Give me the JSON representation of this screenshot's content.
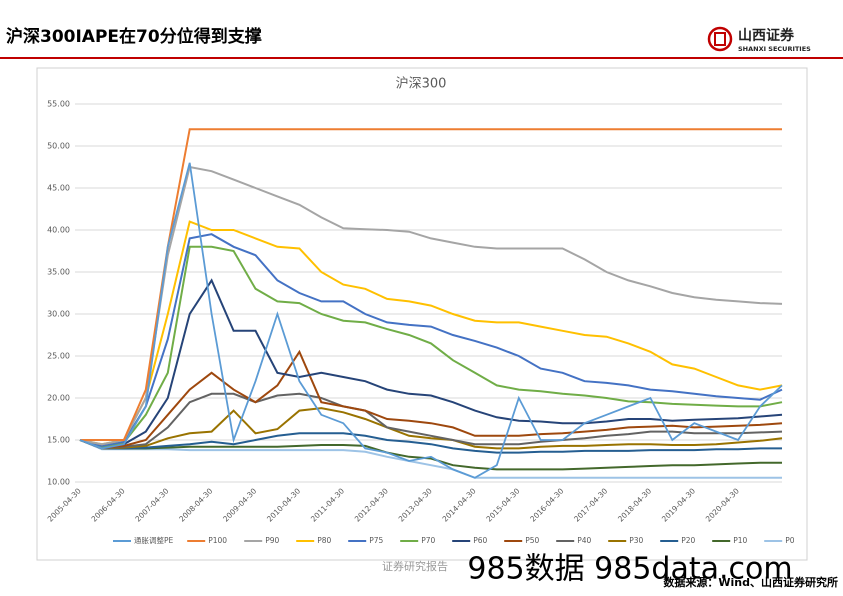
{
  "header": {
    "title": "沪深300IAPE在70分位得到支撑",
    "logo": "山西证券",
    "logo_en": "SHANXI SECURITIES"
  },
  "footer": {
    "center": "证券研究报告",
    "source": "数据来源：Wind、山西证券研究所",
    "watermark": "985数据 985data.com"
  },
  "chart_data": {
    "type": "line",
    "title": "沪深300",
    "categories": [
      "2005-04-30",
      null,
      "2006-04-30",
      null,
      "2007-04-30",
      null,
      "2008-04-30",
      null,
      "2009-04-30",
      null,
      "2010-04-30",
      null,
      "2011-04-30",
      null,
      "2012-04-30",
      null,
      "2013-04-30",
      null,
      "2014-04-30",
      null,
      "2015-04-30",
      null,
      "2016-04-30",
      null,
      "2017-04-30",
      null,
      "2018-04-30",
      null,
      "2019-04-30",
      null,
      "2020-04-30",
      null,
      null
    ],
    "ylim": [
      10,
      55
    ],
    "yticks": [
      {
        "value": 10,
        "label": "10.00"
      },
      {
        "value": 15,
        "label": "15.00"
      },
      {
        "value": 20,
        "label": "20.00"
      },
      {
        "value": 25,
        "label": "25.00"
      },
      {
        "value": 30,
        "label": "30.00"
      },
      {
        "value": 35,
        "label": "35.00"
      },
      {
        "value": 40,
        "label": "40.00"
      },
      {
        "value": 45,
        "label": "45.00"
      },
      {
        "value": 50,
        "label": "50.00"
      },
      {
        "value": 55,
        "label": "55.00"
      }
    ],
    "grid": true,
    "legend": "bottom",
    "series": [
      {
        "name": "通胀调整PE",
        "color": "#5b9bd5",
        "values": [
          15,
          14,
          14.5,
          19,
          38,
          48,
          30,
          15,
          22,
          30,
          22,
          18,
          17,
          14,
          13.5,
          12.5,
          13,
          11.5,
          10.5,
          12,
          20,
          15,
          15,
          17,
          18,
          19,
          20,
          15,
          17,
          16,
          15,
          19,
          21.5
        ]
      },
      {
        "name": "P100",
        "color": "#ed7d31",
        "values": [
          15,
          15,
          15,
          21,
          38,
          52,
          52,
          52,
          52,
          52,
          52,
          52,
          52,
          52,
          52,
          52,
          52,
          52,
          52,
          52,
          52,
          52,
          52,
          52,
          52,
          52,
          52,
          52,
          52,
          52,
          52,
          52,
          52
        ]
      },
      {
        "name": "P90",
        "color": "#a5a5a5",
        "values": [
          15,
          14.5,
          15,
          20,
          37,
          47.5,
          47,
          46,
          45,
          44,
          43,
          41.5,
          40.2,
          40.1,
          40,
          39.8,
          39,
          38.5,
          38,
          37.8,
          37.8,
          37.8,
          37.8,
          36.5,
          35,
          34,
          33.3,
          32.5,
          32,
          31.7,
          31.5,
          31.3,
          31.2
        ]
      },
      {
        "name": "P80",
        "color": "#ffc000",
        "values": [
          15,
          14.5,
          15,
          20,
          30,
          41,
          40,
          40,
          39,
          38,
          37.8,
          35,
          33.5,
          33,
          31.8,
          31.5,
          31,
          30,
          29.2,
          29,
          29,
          28.5,
          28,
          27.5,
          27.3,
          26.5,
          25.5,
          24,
          23.5,
          22.5,
          21.5,
          21,
          21.5
        ]
      },
      {
        "name": "P75",
        "color": "#4472c4",
        "values": [
          15,
          14.3,
          14.8,
          19,
          27,
          39,
          39.5,
          38,
          37,
          34,
          32.5,
          31.5,
          31.5,
          30,
          29,
          28.7,
          28.5,
          27.5,
          26.8,
          26,
          25,
          23.5,
          23,
          22,
          21.8,
          21.5,
          21,
          20.8,
          20.5,
          20.2,
          20,
          19.8,
          21
        ]
      },
      {
        "name": "P70",
        "color": "#70ad47",
        "values": [
          15,
          14.2,
          14.7,
          18,
          23,
          38,
          38,
          37.5,
          33,
          31.5,
          31.3,
          30,
          29.2,
          29,
          28.2,
          27.5,
          26.5,
          24.5,
          23,
          21.5,
          21,
          20.8,
          20.5,
          20.3,
          20,
          19.6,
          19.5,
          19.3,
          19.2,
          19.1,
          19,
          19,
          19.5
        ]
      },
      {
        "name": "P60",
        "color": "#264478",
        "values": [
          15,
          14.2,
          14.5,
          16,
          20,
          30,
          34,
          28,
          28,
          23,
          22.5,
          23,
          22.5,
          22,
          21,
          20.5,
          20.3,
          19.5,
          18.5,
          17.7,
          17.3,
          17.2,
          17,
          17,
          17.2,
          17.5,
          17.5,
          17.3,
          17.4,
          17.5,
          17.6,
          17.8,
          18
        ]
      },
      {
        "name": "P50",
        "color": "#9e480e",
        "values": [
          15,
          14.1,
          14.3,
          15,
          18,
          21,
          23,
          21,
          19.5,
          21.5,
          25.5,
          19.5,
          19,
          18.5,
          17.5,
          17.3,
          17,
          16.5,
          15.5,
          15.5,
          15.5,
          15.7,
          15.8,
          16,
          16.2,
          16.5,
          16.6,
          16.7,
          16.5,
          16.6,
          16.7,
          16.8,
          17
        ]
      },
      {
        "name": "P40",
        "color": "#636363",
        "values": [
          15,
          14,
          14.2,
          14.5,
          16.5,
          19.5,
          20.5,
          20.5,
          19.5,
          20.3,
          20.5,
          20,
          19,
          18.5,
          16.5,
          16,
          15.5,
          15,
          14.5,
          14.5,
          14.5,
          14.8,
          15,
          15.2,
          15.5,
          15.7,
          16,
          16,
          15.8,
          15.8,
          15.8,
          15.9,
          16
        ]
      },
      {
        "name": "P30",
        "color": "#997300",
        "values": [
          15,
          14,
          14.1,
          14.3,
          15.2,
          15.8,
          16,
          18.5,
          15.8,
          16.3,
          18.5,
          18.8,
          18.3,
          17.5,
          16.5,
          15.5,
          15.2,
          15,
          14.2,
          14,
          14,
          14.2,
          14.3,
          14.3,
          14.4,
          14.5,
          14.5,
          14.4,
          14.4,
          14.5,
          14.7,
          14.9,
          15.2
        ]
      },
      {
        "name": "P20",
        "color": "#255e91",
        "values": [
          15,
          14,
          14,
          14.1,
          14.3,
          14.5,
          14.8,
          14.5,
          15,
          15.5,
          15.8,
          15.8,
          15.8,
          15.5,
          15,
          14.8,
          14.5,
          14,
          13.7,
          13.5,
          13.5,
          13.6,
          13.6,
          13.7,
          13.7,
          13.7,
          13.8,
          13.8,
          13.8,
          13.9,
          13.9,
          14,
          14
        ]
      },
      {
        "name": "P10",
        "color": "#43682b",
        "values": [
          15,
          14,
          14,
          14,
          14.1,
          14.2,
          14.2,
          14.2,
          14.2,
          14.2,
          14.3,
          14.4,
          14.4,
          14.3,
          13.5,
          13,
          12.8,
          12,
          11.7,
          11.5,
          11.5,
          11.5,
          11.5,
          11.6,
          11.7,
          11.8,
          11.9,
          12,
          12,
          12.1,
          12.2,
          12.3,
          12.3
        ]
      },
      {
        "name": "P0",
        "color": "#9dc3e6",
        "values": [
          15,
          13.9,
          13.9,
          13.9,
          13.9,
          13.8,
          13.8,
          13.8,
          13.8,
          13.8,
          13.8,
          13.8,
          13.8,
          13.6,
          13,
          12.5,
          12,
          11.5,
          10.5,
          10.5,
          10.5,
          10.5,
          10.5,
          10.5,
          10.5,
          10.5,
          10.5,
          10.5,
          10.5,
          10.5,
          10.5,
          10.5,
          10.5
        ]
      }
    ]
  }
}
